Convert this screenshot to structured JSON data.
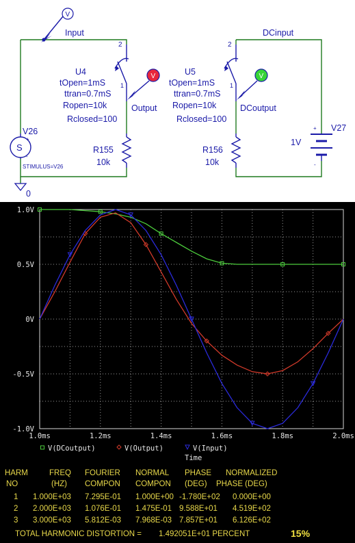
{
  "schematic": {
    "net_input": "Input",
    "net_dcinput": "DCinput",
    "net_output": "Output",
    "net_dcoutput": "DCoutput",
    "ground_label": "0",
    "probe_v": "V",
    "u4": {
      "ref": "U4",
      "params": [
        "tOpen=1mS",
        "ttran=0.7mS",
        "Ropen=10k",
        "Rclosed=100"
      ],
      "pin2": "2",
      "pin1": "1"
    },
    "u5": {
      "ref": "U5",
      "params": [
        "tOpen=1mS",
        "ttran=0.7mS",
        "Ropen=10k",
        "Rclosed=100"
      ],
      "pin2": "2",
      "pin1": "1"
    },
    "r155": {
      "ref": "R155",
      "value": "10k"
    },
    "r156": {
      "ref": "R156",
      "value": "10k"
    },
    "v26": {
      "ref": "V26",
      "source_symbol": "S",
      "plus": "+",
      "minus": "-",
      "stimulus": "STIMULUS=V26"
    },
    "v27": {
      "ref": "V27",
      "value": "1V",
      "plus": "+",
      "minus": "-"
    },
    "colors": {
      "wire": "#1f7a1f",
      "part": "#1a1aa8",
      "probe_red": "#e8283c",
      "probe_green": "#37d437"
    }
  },
  "chart_data": {
    "type": "line",
    "x_axis": {
      "label": "Time",
      "range": [
        1.0,
        2.0
      ],
      "unit": "ms",
      "ticks": [
        "1.0ms",
        "1.2ms",
        "1.4ms",
        "1.6ms",
        "1.8ms",
        "2.0ms"
      ]
    },
    "y_axis": {
      "range": [
        -1.0,
        1.0
      ],
      "ticks": [
        "-1.0V",
        "-0.5V",
        "0V",
        "0.5V",
        "1.0V"
      ]
    },
    "grid": true,
    "legend_position": "bottom",
    "series": [
      {
        "name": "V(DCoutput)",
        "marker": "□",
        "color": "#4ccc3c",
        "x": [
          1.0,
          1.05,
          1.1,
          1.15,
          1.2,
          1.25,
          1.3,
          1.35,
          1.4,
          1.45,
          1.5,
          1.55,
          1.6,
          1.65,
          1.7,
          1.75,
          1.8,
          1.85,
          1.9,
          1.95,
          2.0
        ],
        "y": [
          1.0,
          1.0,
          1.0,
          0.99,
          0.98,
          0.96,
          0.93,
          0.87,
          0.78,
          0.7,
          0.62,
          0.55,
          0.51,
          0.5,
          0.5,
          0.5,
          0.5,
          0.5,
          0.5,
          0.5,
          0.5
        ]
      },
      {
        "name": "V(Output)",
        "marker": "◇",
        "color": "#d23a2a",
        "x": [
          1.0,
          1.05,
          1.1,
          1.15,
          1.2,
          1.25,
          1.3,
          1.35,
          1.4,
          1.45,
          1.5,
          1.55,
          1.6,
          1.65,
          1.7,
          1.75,
          1.8,
          1.85,
          1.9,
          1.95,
          2.0
        ],
        "y": [
          0.0,
          0.25,
          0.52,
          0.78,
          0.93,
          0.97,
          0.88,
          0.68,
          0.43,
          0.18,
          -0.04,
          -0.2,
          -0.33,
          -0.42,
          -0.48,
          -0.5,
          -0.47,
          -0.39,
          -0.27,
          -0.13,
          0.0
        ]
      },
      {
        "name": "V(Input)",
        "marker": "▽",
        "color": "#2b2bdc",
        "x": [
          1.0,
          1.05,
          1.1,
          1.15,
          1.2,
          1.25,
          1.3,
          1.35,
          1.4,
          1.45,
          1.5,
          1.55,
          1.6,
          1.65,
          1.7,
          1.75,
          1.8,
          1.85,
          1.9,
          1.95,
          2.0
        ],
        "y": [
          0.0,
          0.309,
          0.588,
          0.809,
          0.951,
          1.0,
          0.951,
          0.809,
          0.588,
          0.309,
          0.0,
          -0.309,
          -0.588,
          -0.809,
          -0.951,
          -1.0,
          -0.951,
          -0.809,
          -0.588,
          -0.309,
          0.0
        ]
      }
    ]
  },
  "fourier": {
    "headers_row1": [
      "HARM",
      "FREQ",
      "FOURIER",
      "NORMAL",
      "PHASE",
      "NORMALIZED"
    ],
    "headers_row2": [
      "NO",
      "(HZ)",
      "COMPON",
      "COMPON",
      "(DEG)",
      "PHASE (DEG)"
    ],
    "rows": [
      [
        "1",
        "1.000E+03",
        "7.295E-01",
        "1.000E+00",
        "-1.780E+02",
        "0.000E+00"
      ],
      [
        "2",
        "2.000E+03",
        "1.076E-01",
        "1.475E-01",
        "9.588E+01",
        "4.519E+02"
      ],
      [
        "3",
        "3.000E+03",
        "5.812E-03",
        "7.968E-03",
        "7.857E+01",
        "6.126E+02"
      ]
    ],
    "thd_label": "TOTAL HARMONIC DISTORTION =",
    "thd_value": "1.492051E+01 PERCENT",
    "thd_badge": "15%"
  }
}
